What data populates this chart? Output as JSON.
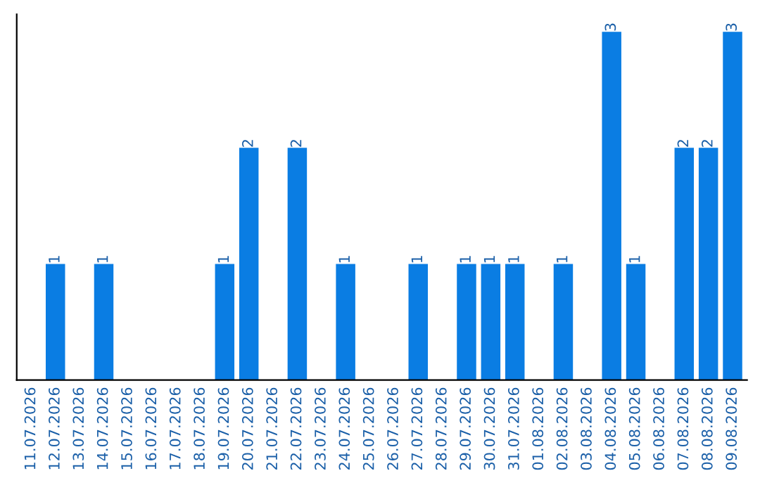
{
  "chart_data": {
    "type": "bar",
    "categories": [
      "11.07.2026",
      "12.07.2026",
      "13.07.2026",
      "14.07.2026",
      "15.07.2026",
      "16.07.2026",
      "17.07.2026",
      "18.07.2026",
      "19.07.2026",
      "20.07.2026",
      "21.07.2026",
      "22.07.2026",
      "23.07.2026",
      "24.07.2026",
      "25.07.2026",
      "26.07.2026",
      "27.07.2026",
      "28.07.2026",
      "29.07.2026",
      "30.07.2026",
      "31.07.2026",
      "01.08.2026",
      "02.08.2026",
      "03.08.2026",
      "04.08.2026",
      "05.08.2026",
      "06.08.2026",
      "07.08.2026",
      "08.08.2026",
      "09.08.2026"
    ],
    "values": [
      0,
      1,
      0,
      1,
      0,
      0,
      0,
      0,
      1,
      2,
      0,
      2,
      0,
      1,
      0,
      0,
      1,
      0,
      1,
      1,
      1,
      0,
      1,
      0,
      3,
      1,
      0,
      2,
      2,
      3
    ],
    "color": "#0a7de3",
    "value_labels": [
      null,
      "1",
      null,
      "1",
      null,
      null,
      null,
      null,
      "1",
      "2",
      null,
      "2",
      null,
      "1",
      null,
      null,
      "1",
      null,
      "1",
      "1",
      "1",
      null,
      "1",
      null,
      "3",
      "1",
      null,
      "2",
      "2",
      "3"
    ],
    "tick_labels": "x",
    "grid": false
  }
}
